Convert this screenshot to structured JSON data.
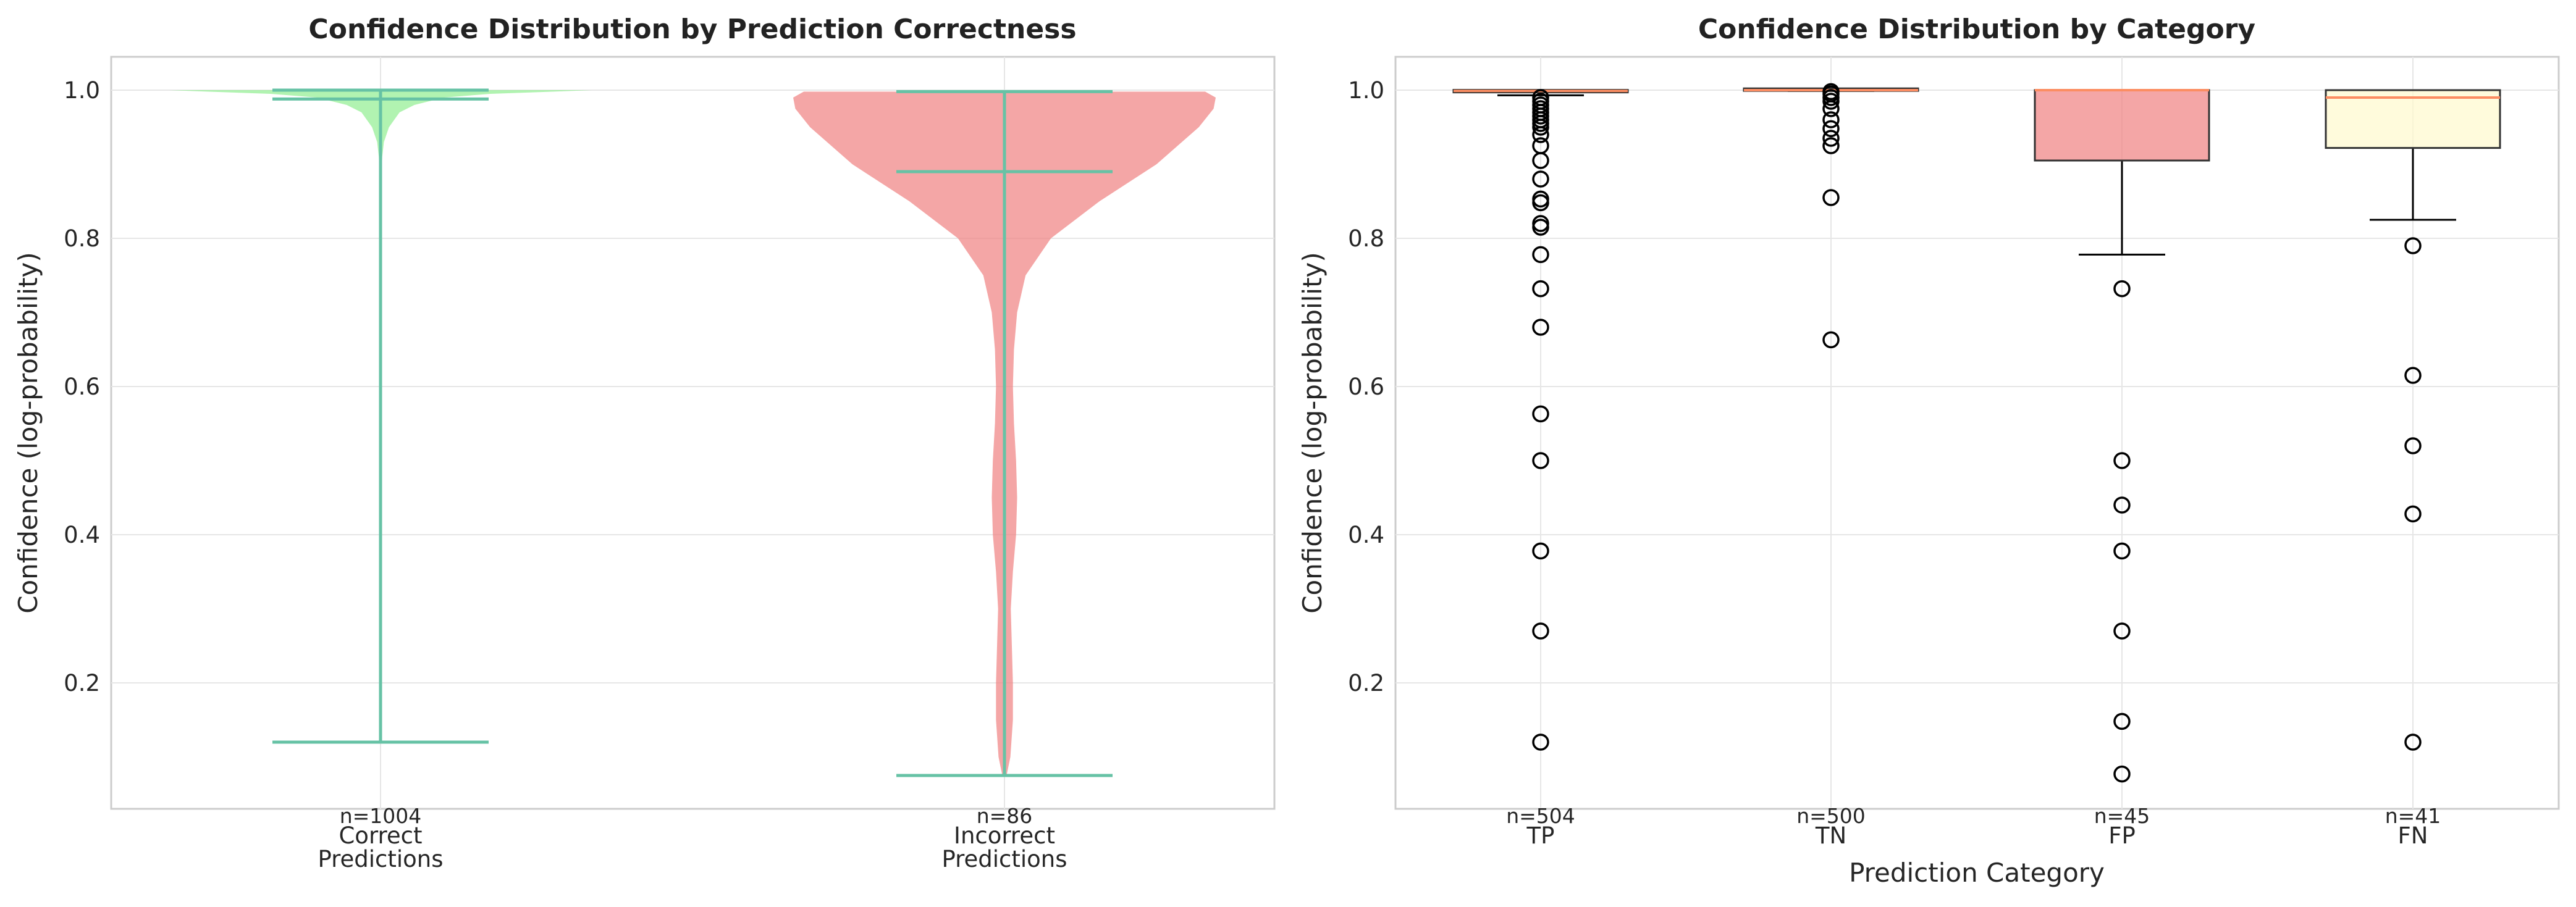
{
  "chart_data": [
    {
      "type": "violin",
      "title": "Confidence Distribution by Prediction Correctness",
      "ylabel": "Confidence (log-probability)",
      "xlabel": "",
      "ylim": [
        0.03,
        1.045
      ],
      "yticks": [
        "0.2",
        "0.4",
        "0.6",
        "0.8",
        "1.0"
      ],
      "grid": true,
      "groups": [
        {
          "label_lines": [
            "Correct",
            "Predictions"
          ],
          "n_label": "n=1004",
          "color": "#90ee90",
          "line_color": "#66c2a5",
          "min": 0.12,
          "max": 1.0,
          "median": 0.988,
          "density": [
            [
              0.12,
              0.0
            ],
            [
              0.5,
              0.0
            ],
            [
              0.8,
              0.002
            ],
            [
              0.88,
              0.004
            ],
            [
              0.91,
              0.008
            ],
            [
              0.93,
              0.016
            ],
            [
              0.95,
              0.04
            ],
            [
              0.97,
              0.09
            ],
            [
              0.98,
              0.16
            ],
            [
              0.99,
              0.3
            ],
            [
              0.995,
              0.52
            ],
            [
              0.998,
              0.82
            ],
            [
              1.0,
              1.0
            ]
          ]
        },
        {
          "label_lines": [
            "Incorrect",
            "Predictions"
          ],
          "n_label": "n=86",
          "color": "#f08080",
          "line_color": "#66c2a5",
          "min": 0.075,
          "max": 0.998,
          "median": 0.89,
          "density": [
            [
              0.075,
              0.01
            ],
            [
              0.1,
              0.028
            ],
            [
              0.15,
              0.04
            ],
            [
              0.2,
              0.04
            ],
            [
              0.25,
              0.035
            ],
            [
              0.3,
              0.03
            ],
            [
              0.35,
              0.04
            ],
            [
              0.4,
              0.055
            ],
            [
              0.45,
              0.06
            ],
            [
              0.5,
              0.055
            ],
            [
              0.55,
              0.045
            ],
            [
              0.6,
              0.04
            ],
            [
              0.65,
              0.045
            ],
            [
              0.7,
              0.06
            ],
            [
              0.75,
              0.1
            ],
            [
              0.8,
              0.22
            ],
            [
              0.85,
              0.45
            ],
            [
              0.9,
              0.72
            ],
            [
              0.95,
              0.92
            ],
            [
              0.975,
              0.99
            ],
            [
              0.99,
              1.0
            ],
            [
              0.998,
              0.95
            ]
          ]
        }
      ]
    },
    {
      "type": "box",
      "title": "Confidence Distribution by Category",
      "ylabel": "Confidence (log-probability)",
      "xlabel": "Prediction Category",
      "ylim": [
        0.03,
        1.045
      ],
      "yticks": [
        "0.2",
        "0.4",
        "0.6",
        "0.8",
        "1.0"
      ],
      "grid": true,
      "categories": [
        {
          "label": "TP",
          "n_label": "n=504",
          "color": "#90ee90",
          "q1": 0.997,
          "median": 0.999,
          "q3": 1.0,
          "whisker_low": 0.993,
          "whisker_high": 1.0,
          "outliers": [
            0.99,
            0.985,
            0.98,
            0.975,
            0.97,
            0.965,
            0.96,
            0.955,
            0.95,
            0.94,
            0.925,
            0.905,
            0.88,
            0.853,
            0.848,
            0.82,
            0.815,
            0.778,
            0.732,
            0.68,
            0.563,
            0.5,
            0.378,
            0.27,
            0.12
          ]
        },
        {
          "label": "TN",
          "n_label": "n=500",
          "color": "#add8e6",
          "q1": 0.999,
          "median": 1.0,
          "q3": 1.0,
          "whisker_low": 0.999,
          "whisker_high": 1.0,
          "outliers": [
            0.998,
            0.995,
            0.99,
            0.985,
            0.975,
            0.96,
            0.948,
            0.935,
            0.925,
            0.855,
            0.663
          ]
        },
        {
          "label": "FP",
          "n_label": "n=45",
          "color": "#f08080",
          "q1": 0.905,
          "median": 1.0,
          "q3": 1.0,
          "whisker_low": 0.778,
          "whisker_high": 1.0,
          "outliers": [
            0.732,
            0.5,
            0.44,
            0.378,
            0.27,
            0.148,
            0.077
          ]
        },
        {
          "label": "FN",
          "n_label": "n=41",
          "color": "#fffacd",
          "q1": 0.922,
          "median": 0.99,
          "q3": 1.0,
          "whisker_low": 0.825,
          "whisker_high": 1.0,
          "outliers": [
            0.79,
            0.615,
            0.52,
            0.428,
            0.12
          ]
        }
      ],
      "median_color": "#fc8d62"
    }
  ]
}
